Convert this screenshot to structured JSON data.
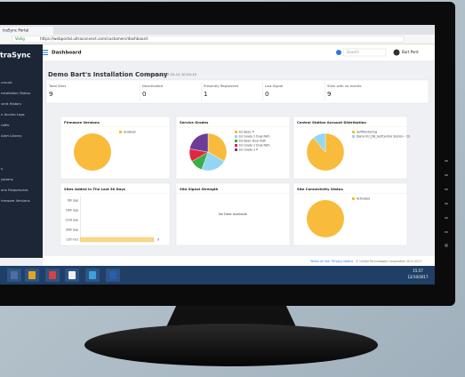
{
  "browser": {
    "tab": "traSync Portal",
    "secure": "Veilig",
    "url": "https://webportal.ultraconnect.com/customers/dashboard"
  },
  "header": {
    "title": "Dashboard",
    "search": "Search",
    "user": "Bart Perit"
  },
  "sidebar": {
    "logo": "traSync",
    "items": [
      "ccount",
      "nstallation Status",
      "vent History",
      "n Access Logs",
      "raffic",
      "Alert Library",
      "s",
      "ystems",
      "ons Frequencies",
      "irmware Versions"
    ]
  },
  "page": {
    "title": "Demo Bart's Installation Company",
    "timestamp": "Browsers 2017-10-12 10:24:15"
  },
  "stats": [
    {
      "label": "Total Sites",
      "value": 9
    },
    {
      "label": "Deactivated",
      "value": 0
    },
    {
      "label": "Presently Registered",
      "value": 1
    },
    {
      "label": "Low Signal",
      "value": 0
    },
    {
      "label": "Sites with no events",
      "value": 9
    }
  ],
  "cards": [
    {
      "title": "Firmware Versions",
      "type": "pie",
      "series": [
        {
          "name": "Undated",
          "color": "#f8bb3b",
          "value": 9
        }
      ]
    },
    {
      "title": "Service Grades",
      "type": "pie",
      "series": [
        {
          "name": "EU Basic P",
          "color": "#f8bb3b",
          "value": 3
        },
        {
          "name": "EU Grade 2 Dual Path",
          "color": "#93d6f2",
          "value": 2
        },
        {
          "name": "EU Basic Dual Path",
          "color": "#3aae4b",
          "value": 1
        },
        {
          "name": "EU Grade 2 Dual Path",
          "color": "#e3263f",
          "value": 1
        },
        {
          "name": "EU Grade 2 P",
          "color": "#6b3d98",
          "value": 2
        }
      ]
    },
    {
      "title": "Central Station Account Distribution",
      "type": "pie",
      "series": [
        {
          "name": "SelfMonitoring",
          "color": "#f8bb3b",
          "value": 8
        },
        {
          "name": "Demo EU_DB_SelfCentral Station - CS",
          "color": "#93d6f2",
          "value": 1
        }
      ]
    },
    {
      "title": "Sites Added In The Last 30 Days",
      "type": "bar",
      "color": "#fbd78a",
      "categories": [
        "9th Sep",
        "16th Sep",
        "23rd Sep",
        "30th Sep",
        "11th Oct"
      ],
      "values": [
        0,
        0,
        0,
        0,
        9
      ]
    },
    {
      "title": "Site Signal Strength",
      "type": "empty",
      "message": "No Data Available"
    },
    {
      "title": "Site Connectivity Status",
      "type": "pie",
      "series": [
        {
          "name": "Activated",
          "color": "#f8bb3b",
          "value": 9
        }
      ]
    }
  ],
  "footer": {
    "links": [
      "Terms of Use",
      "Privacy Notice"
    ],
    "copyright": "© United Technologies Corporation 2011-2017"
  },
  "taskbar": {
    "time": "15:57",
    "date": "12/10/2017"
  }
}
